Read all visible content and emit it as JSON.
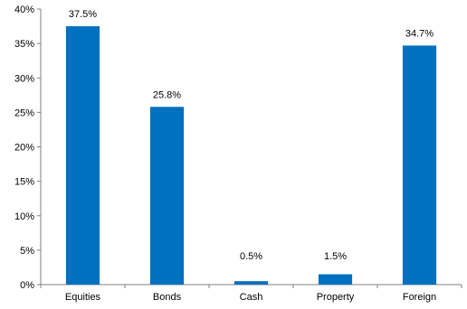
{
  "chart_data": {
    "type": "bar",
    "categories": [
      "Equities",
      "Bonds",
      "Cash",
      "Property",
      "Foreign"
    ],
    "values": [
      37.5,
      25.8,
      0.5,
      1.5,
      34.7
    ],
    "data_labels": [
      "37.5%",
      "25.8%",
      "0.5%",
      "1.5%",
      "34.7%"
    ],
    "ylim": [
      0,
      40
    ],
    "yticks": [
      0,
      5,
      10,
      15,
      20,
      25,
      30,
      35,
      40
    ],
    "ytick_labels": [
      "0%",
      "5%",
      "10%",
      "15%",
      "20%",
      "25%",
      "30%",
      "35%",
      "40%"
    ],
    "title": "",
    "xlabel": "",
    "ylabel": "",
    "grid": false,
    "legend": "none",
    "bar_color": "#0070C0",
    "axis_color": "#808080"
  }
}
